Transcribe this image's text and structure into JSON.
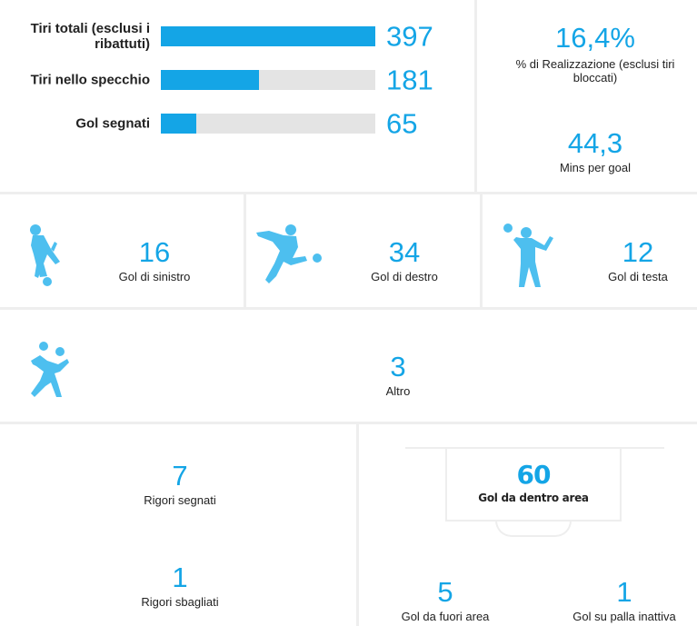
{
  "shots": [
    {
      "label": "Tiri totali (esclusi i ribattuti)",
      "value": "397",
      "fraction": 1.0
    },
    {
      "label": "Tiri nello specchio",
      "value": "181",
      "fraction": 0.456
    },
    {
      "label": "Gol segnati",
      "value": "65",
      "fraction": 0.164
    }
  ],
  "conversion": {
    "value": "16,4%",
    "label": "% di Realizzazione (esclusi tiri bloccati)"
  },
  "mins_per_goal": {
    "value": "44,3",
    "label": "Mins per goal"
  },
  "goal_types": [
    {
      "value": "16",
      "label": "Gol di sinistro",
      "icon": "left-foot-player-icon"
    },
    {
      "value": "34",
      "label": "Gol di destro",
      "icon": "right-foot-player-icon"
    },
    {
      "value": "12",
      "label": "Gol di testa",
      "icon": "header-player-icon"
    }
  ],
  "other": {
    "value": "3",
    "label": "Altro",
    "icon": "bicycle-kick-player-icon"
  },
  "penalties": {
    "scored": {
      "value": "7",
      "label": "Rigori segnati"
    },
    "missed": {
      "value": "1",
      "label": "Rigori sbagliati"
    }
  },
  "area": {
    "inside": {
      "value": "60",
      "label": "Gol da dentro area"
    },
    "outside": {
      "value": "5",
      "label": "Gol da fuori area"
    },
    "set_piece": {
      "value": "1",
      "label": "Gol su palla inattiva"
    }
  },
  "colors": {
    "accent": "#14a5e6",
    "track": "#e4e4e4",
    "divider": "#eeeeee",
    "silhouette": "#4dbfef"
  }
}
